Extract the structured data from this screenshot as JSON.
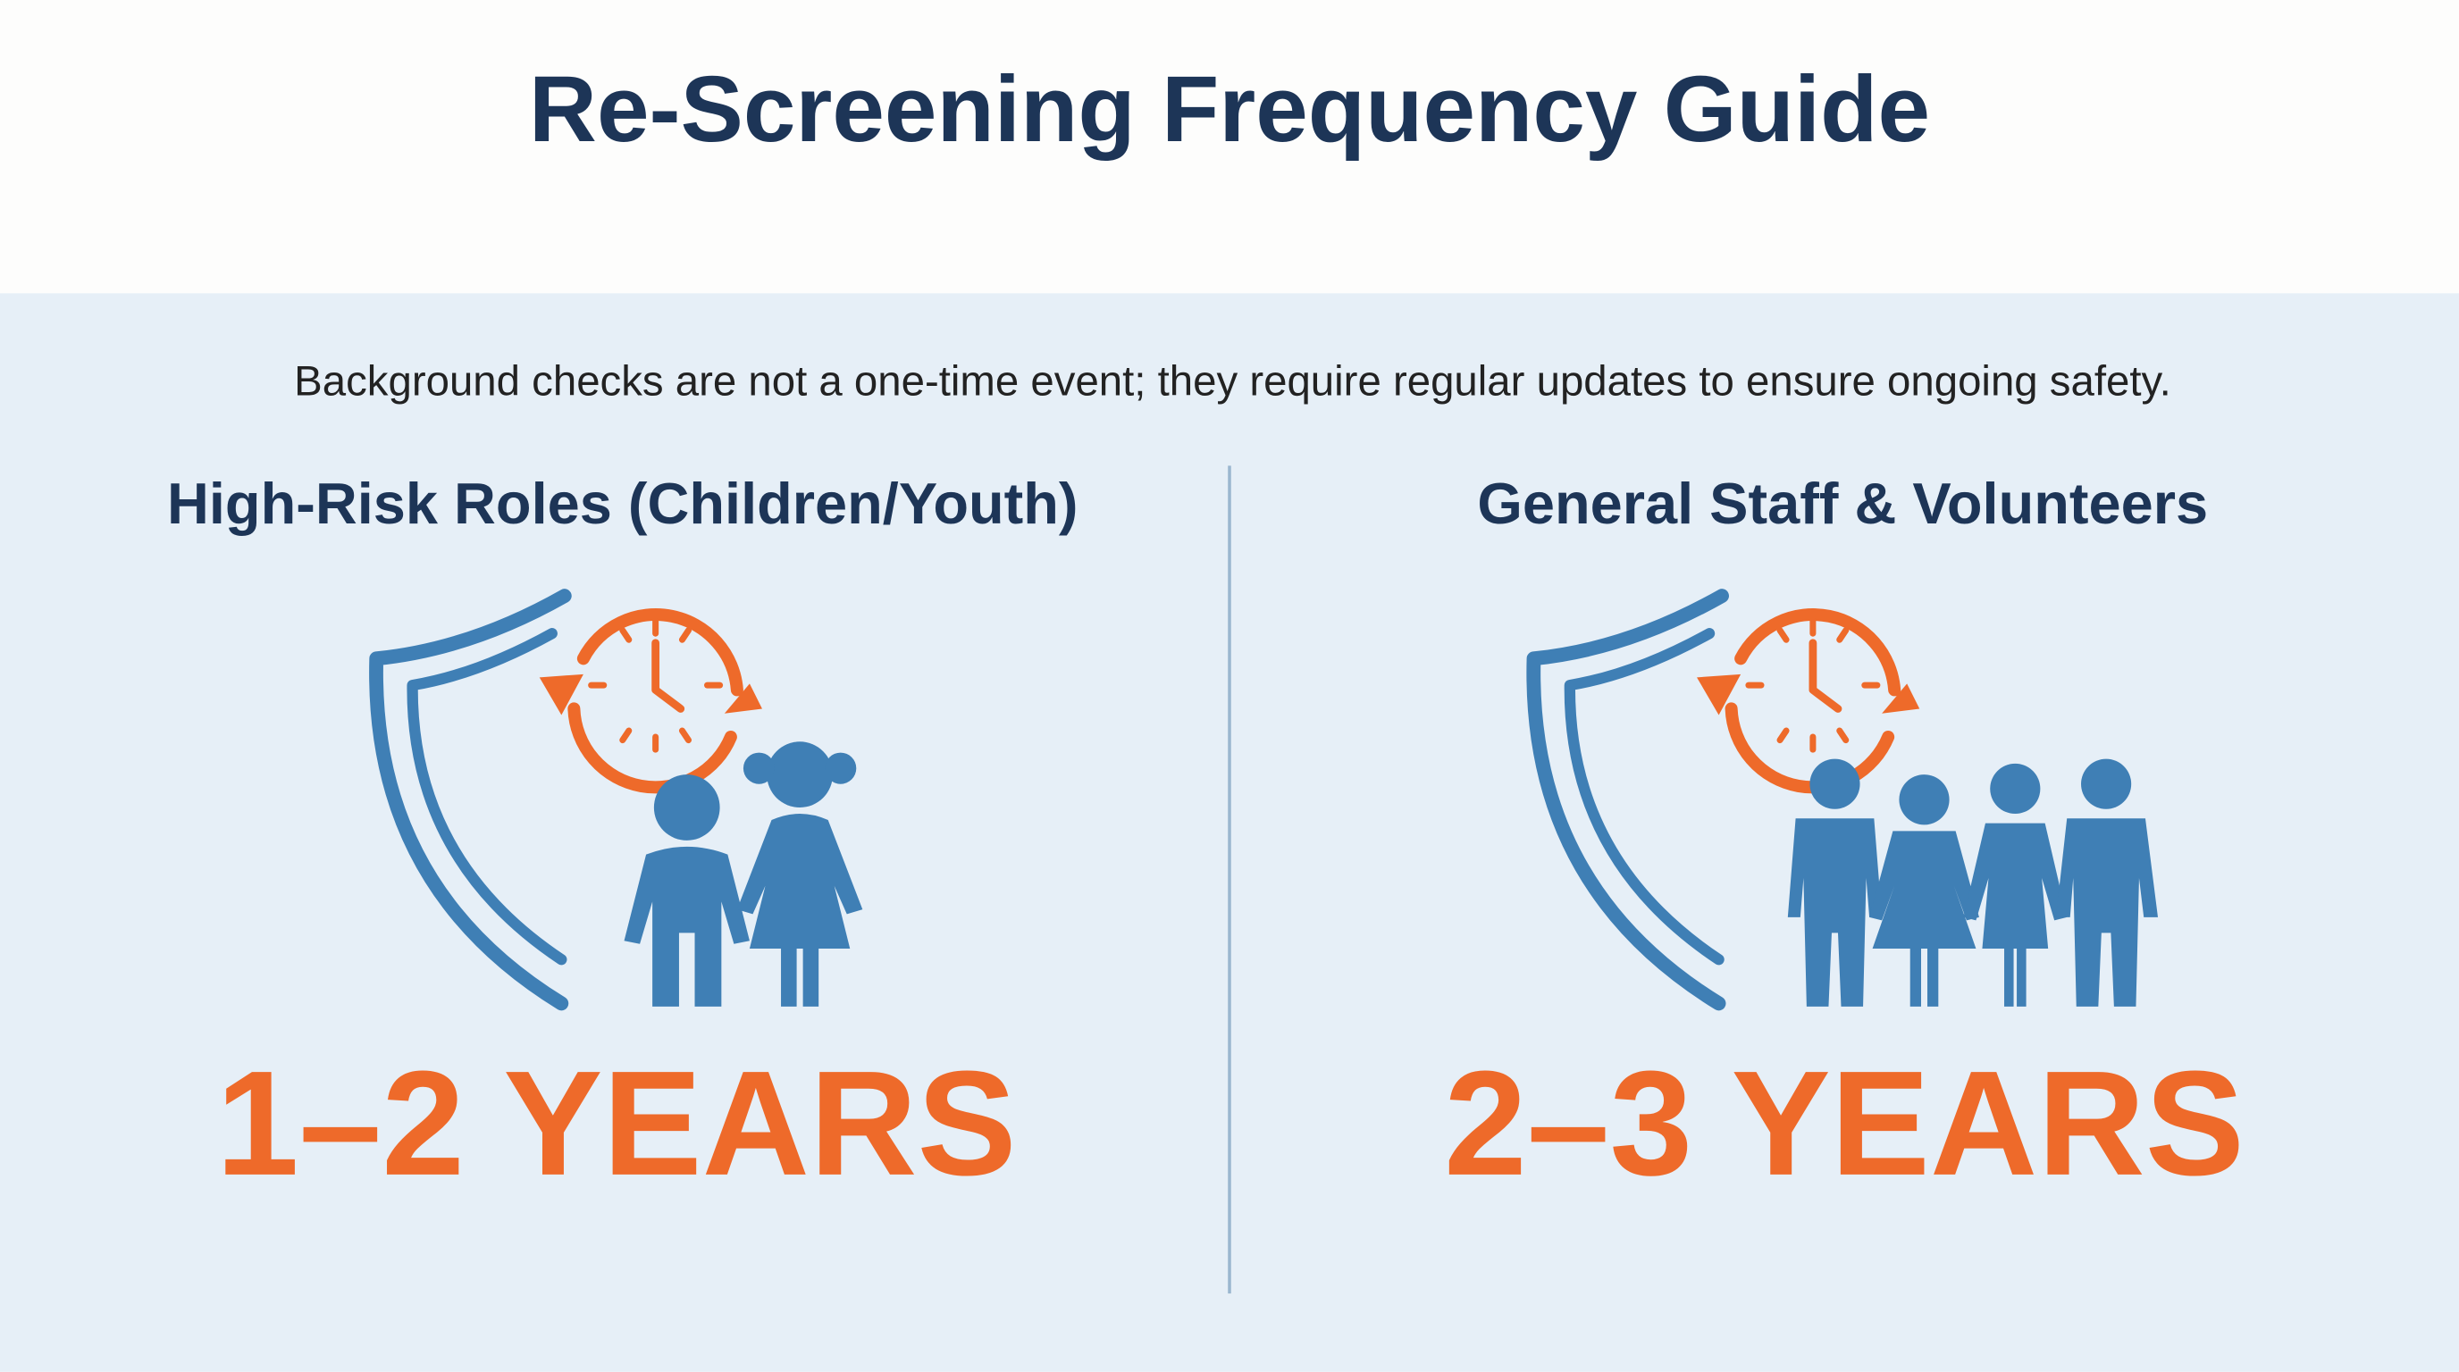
{
  "header": {
    "title": "Re-Screening Frequency Guide"
  },
  "intro": "Background checks are not a one-time event; they require regular updates to ensure ongoing safety.",
  "columns": [
    {
      "heading": "High-Risk Roles (Children/Youth)",
      "interval": "1–2 YEARS"
    },
    {
      "heading": "General Staff & Volunteers",
      "interval": "2–3 YEARS"
    }
  ]
}
